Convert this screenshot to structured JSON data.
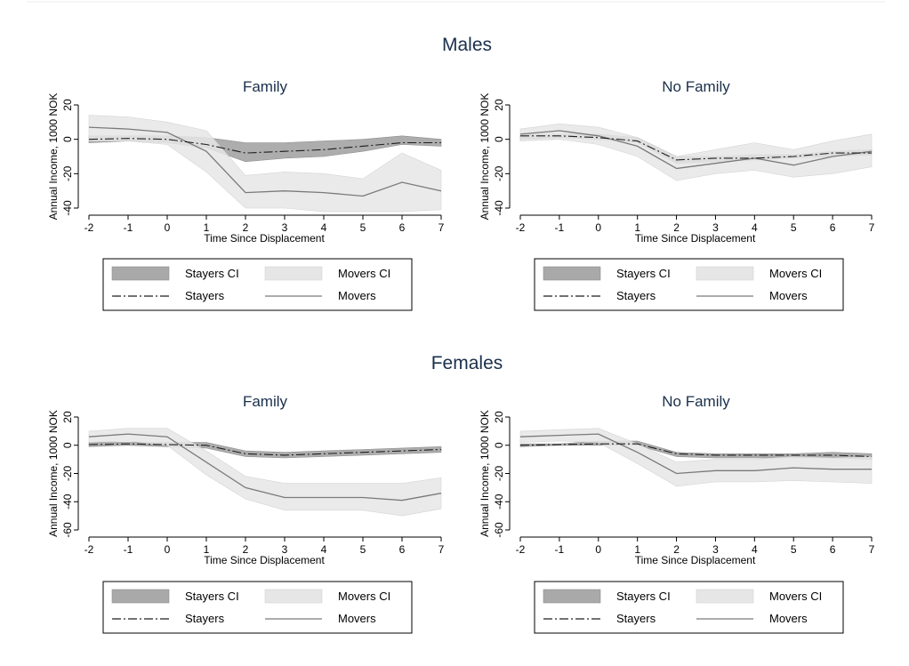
{
  "figure": {
    "groups": [
      "Males",
      "Females"
    ]
  },
  "legend_items": [
    {
      "label": "Stayers CI",
      "kind": "band",
      "color": "#a9a9a9"
    },
    {
      "label": "Movers CI",
      "kind": "band",
      "color": "#e6e6e6"
    },
    {
      "label": "Stayers",
      "kind": "line",
      "color": "#1e1e1e",
      "dash": "dash-dot"
    },
    {
      "label": "Movers",
      "kind": "line",
      "color": "#7a7a7a",
      "dash": "solid"
    }
  ],
  "chart_data": [
    {
      "type": "area",
      "group": "Males",
      "title": "Family",
      "xlabel": "Time Since Displacement",
      "ylabel": "Annual Income, 1000 NOK",
      "x": [
        -2,
        -1,
        0,
        1,
        2,
        3,
        4,
        5,
        6,
        7
      ],
      "xlim": [
        -2,
        7
      ],
      "ylim": [
        -40,
        20
      ],
      "yticks": [
        20,
        0,
        -20,
        -40
      ],
      "grid": false,
      "legend": "bottom",
      "series": [
        {
          "name": "Stayers CI",
          "kind": "band",
          "lower": [
            -2,
            -1,
            -2,
            -5,
            -13,
            -11,
            -10,
            -7,
            -3,
            -4
          ],
          "upper": [
            2,
            2,
            2,
            1,
            -2,
            -2,
            -1,
            0,
            2,
            0
          ]
        },
        {
          "name": "Movers CI",
          "kind": "band",
          "lower": [
            -1,
            -1,
            -3,
            -19,
            -40,
            -40,
            -42,
            -42,
            -42,
            -41
          ],
          "upper": [
            14,
            13,
            10,
            5,
            -21,
            -19,
            -20,
            -23,
            -8,
            -18
          ]
        },
        {
          "name": "Stayers",
          "kind": "line",
          "values": [
            0,
            0.5,
            0,
            -3,
            -8,
            -7,
            -6,
            -4,
            -2,
            -2
          ]
        },
        {
          "name": "Movers",
          "kind": "line",
          "values": [
            7,
            6,
            4,
            -7,
            -31,
            -30,
            -31,
            -33,
            -25,
            -30
          ]
        }
      ]
    },
    {
      "type": "area",
      "group": "Males",
      "title": "No Family",
      "xlabel": "Time Since Displacement",
      "ylabel": "Annual Income, 1000 NOK",
      "x": [
        -2,
        -1,
        0,
        1,
        2,
        3,
        4,
        5,
        6,
        7
      ],
      "xlim": [
        -2,
        7
      ],
      "ylim": [
        -40,
        20
      ],
      "yticks": [
        20,
        0,
        -20,
        -40
      ],
      "grid": false,
      "legend": "bottom",
      "series": [
        {
          "name": "Stayers CI",
          "kind": "band",
          "lower": [
            0,
            1,
            0,
            -2,
            -14,
            -13,
            -12,
            -11,
            -10,
            -9
          ],
          "upper": [
            3,
            3,
            3,
            1,
            -10,
            -10,
            -9,
            -9,
            -7,
            -6
          ]
        },
        {
          "name": "Movers CI",
          "kind": "band",
          "lower": [
            -1,
            0,
            -3,
            -10,
            -24,
            -20,
            -18,
            -22,
            -20,
            -16
          ],
          "upper": [
            6,
            9,
            7,
            1,
            -10,
            -6,
            -2,
            -6,
            -1,
            3
          ]
        },
        {
          "name": "Stayers",
          "kind": "line",
          "values": [
            2,
            2,
            1,
            -1,
            -12,
            -11,
            -11,
            -10,
            -8,
            -8
          ]
        },
        {
          "name": "Movers",
          "kind": "line",
          "values": [
            3,
            5,
            2,
            -4,
            -17,
            -14,
            -11,
            -15,
            -10,
            -7
          ]
        }
      ]
    },
    {
      "type": "area",
      "group": "Females",
      "title": "Family",
      "xlabel": "Time Since Displacement",
      "ylabel": "Annual Income, 1000 NOK",
      "x": [
        -2,
        -1,
        0,
        1,
        2,
        3,
        4,
        5,
        6,
        7
      ],
      "xlim": [
        -2,
        7
      ],
      "ylim": [
        -60,
        20
      ],
      "yticks": [
        20,
        0,
        -20,
        -40,
        -60
      ],
      "grid": false,
      "legend": "bottom",
      "series": [
        {
          "name": "Stayers CI",
          "kind": "band",
          "lower": [
            -1,
            0,
            -1,
            -2,
            -8,
            -9,
            -8,
            -7,
            -6,
            -5
          ],
          "upper": [
            2,
            2,
            2,
            2,
            -4,
            -5,
            -4,
            -3,
            -2,
            -1
          ]
        },
        {
          "name": "Movers CI",
          "kind": "band",
          "lower": [
            2,
            3,
            0,
            -21,
            -38,
            -46,
            -46,
            -46,
            -50,
            -45
          ],
          "upper": [
            10,
            12,
            12,
            -4,
            -22,
            -27,
            -27,
            -27,
            -27,
            -23
          ]
        },
        {
          "name": "Stayers",
          "kind": "line",
          "values": [
            0.5,
            1,
            0.5,
            0,
            -6,
            -7,
            -6,
            -5,
            -4,
            -3
          ]
        },
        {
          "name": "Movers",
          "kind": "line",
          "values": [
            6,
            8,
            6,
            -12,
            -30,
            -37,
            -37,
            -37,
            -39,
            -34
          ]
        }
      ]
    },
    {
      "type": "area",
      "group": "Females",
      "title": "No Family",
      "xlabel": "Time Since Displacement",
      "ylabel": "Annual Income, 1000 NOK",
      "x": [
        -2,
        -1,
        0,
        1,
        2,
        3,
        4,
        5,
        6,
        7
      ],
      "xlim": [
        -2,
        7
      ],
      "ylim": [
        -60,
        20
      ],
      "yticks": [
        20,
        0,
        -20,
        -40,
        -60
      ],
      "grid": false,
      "legend": "bottom",
      "series": [
        {
          "name": "Stayers CI",
          "kind": "band",
          "lower": [
            -1,
            0,
            0,
            0,
            -8,
            -9,
            -9,
            -9,
            -9,
            -10
          ],
          "upper": [
            1,
            1,
            3,
            3,
            -5,
            -6,
            -6,
            -6,
            -5,
            -6
          ]
        },
        {
          "name": "Movers CI",
          "kind": "band",
          "lower": [
            2,
            3,
            2,
            -13,
            -29,
            -26,
            -26,
            -25,
            -26,
            -27
          ],
          "upper": [
            10,
            11,
            12,
            1,
            -12,
            -10,
            -10,
            -8,
            -9,
            -8
          ]
        },
        {
          "name": "Stayers",
          "kind": "line",
          "values": [
            0,
            0.5,
            1,
            1,
            -6,
            -7,
            -7,
            -7,
            -7,
            -8
          ]
        },
        {
          "name": "Movers",
          "kind": "line",
          "values": [
            6,
            7,
            8,
            -5,
            -20,
            -18,
            -18,
            -16,
            -17,
            -17
          ]
        }
      ]
    }
  ]
}
